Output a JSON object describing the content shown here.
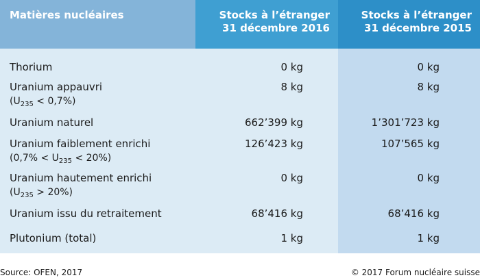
{
  "table": {
    "headers": {
      "materials": "Matières nucléaires",
      "col2_line1": "Stocks à l’étranger",
      "col2_line2": "31 décembre 2016",
      "col3_line1": "Stocks à l’étranger",
      "col3_line2": "31 décembre 2015"
    },
    "rows": [
      {
        "label": "Thorium",
        "v2016": "0 kg",
        "v2015": "0 kg"
      },
      {
        "label": "Uranium appauvri",
        "note_pre": "(U",
        "note_sub": "235",
        "note_post": " < 0,7%)",
        "v2016": "8 kg",
        "v2015": "8 kg"
      },
      {
        "label": "Uranium naturel",
        "v2016": "662’399 kg",
        "v2015": "1’301’723 kg"
      },
      {
        "label": "Uranium faiblement enrichi",
        "note_pre": "(0,7% < U",
        "note_sub": "235",
        "note_post": " < 20%)",
        "v2016": "126’423 kg",
        "v2015": "107’565 kg"
      },
      {
        "label": "Uranium hautement enrichi",
        "note_pre": "(U",
        "note_sub": "235",
        "note_post": " > 20%)",
        "v2016": "0 kg",
        "v2015": "0 kg"
      },
      {
        "label": "Uranium issu du retraitement",
        "v2016": "68’416 kg",
        "v2015": "68’416 kg"
      },
      {
        "label": "Plutonium (total)",
        "v2016": "1 kg",
        "v2015": "1 kg"
      }
    ]
  },
  "footer": {
    "source": "Source: OFEN, 2017",
    "copyright": "© 2017 Forum nucléaire suisse"
  },
  "colors": {
    "header_left": "#84b4d9",
    "header_mid": "#3f9fd2",
    "header_right": "#2d8fc8",
    "body_light": "#dcebf5",
    "body_right": "#c2daef"
  }
}
